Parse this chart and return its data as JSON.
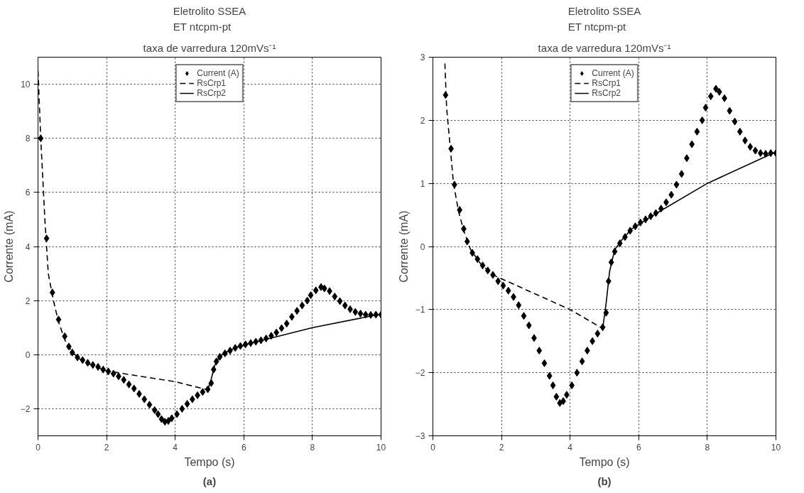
{
  "chart_data": [
    {
      "type": "scatter",
      "title": "Eletrolito SSEA\nET ntcpm-pt",
      "subtitle": "taxa de varredura 120mVs⁻¹",
      "xlabel": "Tempo (s)",
      "ylabel": "Corrente (mA)",
      "annotations": [
        "(a)"
      ],
      "xlim": [
        0,
        10
      ],
      "ylim": [
        -3,
        11
      ],
      "xticks": [
        0,
        2,
        4,
        6,
        8,
        10
      ],
      "yticks": [
        -2,
        0,
        2,
        4,
        6,
        8,
        10
      ],
      "grid": true,
      "legend": "top",
      "series": [
        {
          "name": "Current (A)",
          "marker": "diamond",
          "color": "#000000",
          "x": [
            0.08,
            0.25,
            0.42,
            0.6,
            0.78,
            0.9,
            1.0,
            1.15,
            1.3,
            1.45,
            1.6,
            1.75,
            1.9,
            2.05,
            2.2,
            2.35,
            2.5,
            2.65,
            2.8,
            2.95,
            3.1,
            3.25,
            3.4,
            3.5,
            3.6,
            3.7,
            3.8,
            3.9,
            4.05,
            4.2,
            4.35,
            4.5,
            4.65,
            4.8,
            4.95,
            5.05,
            5.12,
            5.2,
            5.3,
            5.45,
            5.6,
            5.75,
            5.9,
            6.05,
            6.2,
            6.35,
            6.5,
            6.65,
            6.8,
            6.95,
            7.1,
            7.25,
            7.4,
            7.55,
            7.7,
            7.85,
            7.95,
            8.1,
            8.25,
            8.35,
            8.5,
            8.65,
            8.8,
            8.95,
            9.1,
            9.25,
            9.4,
            9.55,
            9.7,
            9.85,
            10.0
          ],
          "values": [
            8.0,
            4.3,
            2.3,
            1.3,
            0.68,
            0.3,
            0.08,
            -0.1,
            -0.2,
            -0.3,
            -0.38,
            -0.45,
            -0.55,
            -0.62,
            -0.7,
            -0.8,
            -0.93,
            -1.1,
            -1.25,
            -1.45,
            -1.65,
            -1.85,
            -2.05,
            -2.2,
            -2.38,
            -2.48,
            -2.45,
            -2.35,
            -2.2,
            -2.0,
            -1.82,
            -1.65,
            -1.5,
            -1.38,
            -1.28,
            -1.05,
            -0.55,
            -0.25,
            -0.08,
            0.05,
            0.15,
            0.25,
            0.32,
            0.38,
            0.43,
            0.48,
            0.53,
            0.6,
            0.7,
            0.82,
            0.98,
            1.15,
            1.4,
            1.62,
            1.82,
            2.0,
            2.2,
            2.38,
            2.5,
            2.45,
            2.35,
            2.15,
            1.98,
            1.82,
            1.68,
            1.58,
            1.52,
            1.48,
            1.47,
            1.48,
            1.48
          ]
        },
        {
          "name": "RsCrp1",
          "type": "line",
          "line_style": "dashed",
          "color": "#000000",
          "x": [
            0.0,
            0.08,
            0.2,
            0.3,
            0.45,
            0.6,
            0.8,
            1.0,
            1.2,
            1.5,
            2.0,
            4.0,
            4.95
          ],
          "values": [
            10.5,
            8.0,
            5.0,
            3.0,
            2.0,
            1.2,
            0.5,
            0.1,
            -0.15,
            -0.35,
            -0.6,
            -1.0,
            -1.3
          ]
        },
        {
          "name": "RsCrp2",
          "type": "line",
          "line_style": "solid",
          "color": "#000000",
          "x": [
            4.95,
            5.05,
            5.15,
            5.3,
            5.5,
            5.8,
            6.0,
            6.5,
            8.0,
            10.0
          ],
          "values": [
            -1.3,
            -0.9,
            -0.4,
            -0.05,
            0.1,
            0.28,
            0.35,
            0.52,
            1.0,
            1.5
          ]
        }
      ]
    },
    {
      "type": "scatter",
      "title": "Eletrolito SSEA\nET ntcpm-pt",
      "subtitle": "taxa de varredura 120mVs⁻¹",
      "xlabel": "Tempo (s)",
      "ylabel": "Corrente (mA)",
      "annotations": [
        "(b)"
      ],
      "xlim": [
        0,
        10
      ],
      "ylim": [
        -3,
        3
      ],
      "xticks": [
        0,
        2,
        4,
        6,
        8,
        10
      ],
      "yticks": [
        -3,
        -2,
        -1,
        0,
        1,
        2,
        3
      ],
      "grid": true,
      "legend": "top",
      "series": [
        {
          "name": "Current (A)",
          "marker": "diamond",
          "color": "#000000",
          "x": [
            0.37,
            0.53,
            0.63,
            0.78,
            0.9,
            1.0,
            1.15,
            1.3,
            1.45,
            1.6,
            1.75,
            1.9,
            2.05,
            2.2,
            2.35,
            2.5,
            2.65,
            2.8,
            2.95,
            3.1,
            3.25,
            3.4,
            3.5,
            3.6,
            3.7,
            3.8,
            3.9,
            4.05,
            4.2,
            4.35,
            4.5,
            4.65,
            4.8,
            4.95,
            5.05,
            5.12,
            5.2,
            5.3,
            5.45,
            5.6,
            5.75,
            5.9,
            6.05,
            6.2,
            6.35,
            6.5,
            6.65,
            6.8,
            6.95,
            7.1,
            7.25,
            7.4,
            7.55,
            7.7,
            7.85,
            7.95,
            8.1,
            8.25,
            8.35,
            8.5,
            8.65,
            8.8,
            8.95,
            9.1,
            9.25,
            9.4,
            9.55,
            9.7,
            9.85,
            10.0
          ],
          "values": [
            2.4,
            1.55,
            0.98,
            0.58,
            0.28,
            0.08,
            -0.1,
            -0.2,
            -0.3,
            -0.38,
            -0.45,
            -0.55,
            -0.62,
            -0.7,
            -0.8,
            -0.93,
            -1.1,
            -1.25,
            -1.45,
            -1.65,
            -1.85,
            -2.05,
            -2.2,
            -2.38,
            -2.48,
            -2.45,
            -2.35,
            -2.2,
            -2.0,
            -1.82,
            -1.65,
            -1.5,
            -1.38,
            -1.28,
            -1.05,
            -0.55,
            -0.25,
            -0.08,
            0.05,
            0.15,
            0.25,
            0.32,
            0.38,
            0.43,
            0.48,
            0.53,
            0.6,
            0.7,
            0.82,
            0.98,
            1.15,
            1.4,
            1.62,
            1.82,
            2.0,
            2.2,
            2.38,
            2.5,
            2.45,
            2.35,
            2.15,
            1.98,
            1.82,
            1.68,
            1.58,
            1.52,
            1.48,
            1.47,
            1.48,
            1.48
          ]
        },
        {
          "name": "RsCrp1",
          "type": "line",
          "line_style": "dashed",
          "color": "#000000",
          "x": [
            0.35,
            0.4,
            0.5,
            0.6,
            0.75,
            0.9,
            1.1,
            1.4,
            1.75,
            4.0,
            4.95
          ],
          "values": [
            2.9,
            2.2,
            1.6,
            1.0,
            0.55,
            0.25,
            -0.05,
            -0.28,
            -0.45,
            -1.0,
            -1.3
          ]
        },
        {
          "name": "RsCrp2",
          "type": "line",
          "line_style": "solid",
          "color": "#000000",
          "x": [
            4.95,
            5.05,
            5.15,
            5.3,
            5.5,
            5.8,
            6.0,
            6.5,
            8.0,
            10.0
          ],
          "values": [
            -1.3,
            -0.9,
            -0.4,
            -0.05,
            0.1,
            0.28,
            0.35,
            0.52,
            1.0,
            1.5
          ]
        }
      ]
    }
  ]
}
